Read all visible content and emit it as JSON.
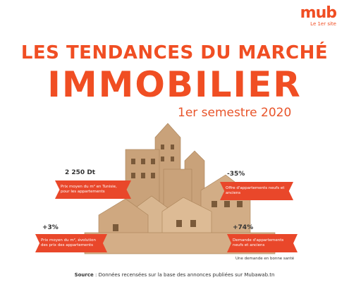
{
  "logo": {
    "name": "mub",
    "tagline": "Le 1er site"
  },
  "header": {
    "title_line_1": "LES TENDANCES DU MARCHÉ",
    "title_line_2": "IMMOBILIER",
    "subtitle": "1er semestre 2020"
  },
  "stats": [
    {
      "value": "2 250 Dt",
      "label": "Prix moyen du m² en Tunisie, pour les appartements"
    },
    {
      "value": "-35%",
      "label": "Offre d'appartements neufs et anciens"
    },
    {
      "value": "+3%",
      "label": "Prix moyen du m², évolution des prix des appartements"
    },
    {
      "value": "+74%",
      "label": "Demande d'appartements neufs et anciens",
      "note": "Une demande en bonne santé"
    }
  ],
  "footer": {
    "source_label": "Source",
    "source_text": ": Données recensées sur la base des annonces  publiées sur Mubawab.tn"
  }
}
